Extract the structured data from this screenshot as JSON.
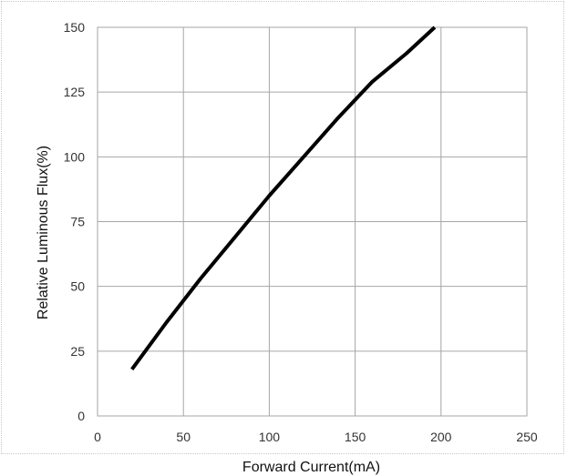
{
  "chart_data": {
    "type": "line",
    "xlabel": "Forward Current(mA)",
    "ylabel": "Relative Luminous Flux(%)",
    "xlim": [
      0,
      250
    ],
    "ylim": [
      0,
      150
    ],
    "x_ticks": [
      "0",
      "50",
      "100",
      "150",
      "200",
      "250"
    ],
    "y_ticks": [
      "0",
      "25",
      "50",
      "75",
      "100",
      "125",
      "150"
    ],
    "grid": true,
    "series": [
      {
        "x": [
          20,
          40,
          60,
          80,
          100,
          120,
          140,
          160,
          180,
          198
        ],
        "values": [
          18,
          36,
          53,
          69,
          85,
          100,
          115,
          129,
          140,
          151
        ],
        "color": "#000000"
      }
    ]
  }
}
